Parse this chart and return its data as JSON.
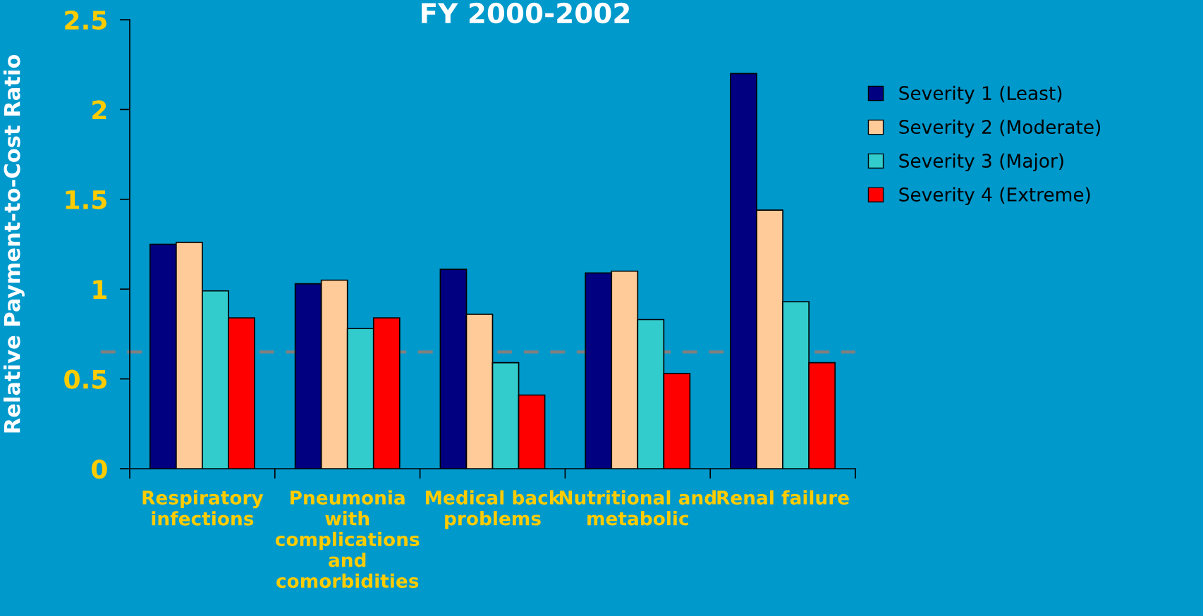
{
  "chart_data": {
    "type": "bar",
    "title": "FY 2000-2002",
    "ylabel": "Relative Payment-to-Cost Ratio",
    "categories": [
      "Respiratory\ninfections",
      "Pneumonia\nwith\ncomplications\nand\ncomorbidities",
      "Medical back\nproblems",
      "Nutritional and\nmetabolic",
      "Renal failure"
    ],
    "series": [
      {
        "name": "Severity 1 (Least)",
        "color": "#000080",
        "values": [
          1.25,
          1.03,
          1.11,
          1.09,
          2.2
        ]
      },
      {
        "name": "Severity 2 (Moderate)",
        "color": "#ffcc99",
        "values": [
          1.26,
          1.05,
          0.86,
          1.1,
          1.44
        ]
      },
      {
        "name": "Severity 3 (Major)",
        "color": "#33cccc",
        "values": [
          0.99,
          0.78,
          0.59,
          0.83,
          0.93
        ]
      },
      {
        "name": "Severity 4 (Extreme)",
        "color": "#ff0000",
        "values": [
          0.84,
          0.84,
          0.41,
          0.53,
          0.59
        ]
      }
    ],
    "ylim": [
      0,
      2.5
    ],
    "yticks": [
      0,
      0.5,
      1,
      1.5,
      2,
      2.5
    ],
    "ref_lines": [
      {
        "axis": "y",
        "value": 0.65,
        "label": null,
        "color": "#808080",
        "line_style": "dashed"
      }
    ],
    "grid": false,
    "legend": "right"
  }
}
